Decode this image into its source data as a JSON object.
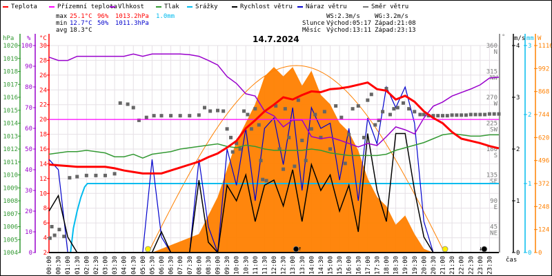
{
  "legend": [
    {
      "label": "Teplota",
      "color": "#ff0000"
    },
    {
      "label": "Přízemní teplota",
      "color": "#ff00ff"
    },
    {
      "label": "Vlhkost",
      "color": "#9900cc"
    },
    {
      "label": "Tlak",
      "color": "#339933"
    },
    {
      "label": "Srážky",
      "color": "#00bbee"
    },
    {
      "label": "Rychlost větru",
      "color": "#000000"
    },
    {
      "label": "Náraz větru",
      "color": "#0000cc"
    },
    {
      "label": "Směr větru",
      "color": "#777777"
    }
  ],
  "stats": {
    "max_label": "max",
    "max_temp": "25.1°C",
    "max_hum": "96%",
    "max_press": "1013.2hPa",
    "max_rain": "1.0mm",
    "min_label": "min",
    "min_temp": "12.7°C",
    "min_hum": "50%",
    "min_press": "1011.3hPa",
    "avg_label": "avg",
    "avg_temp": "18.3°C",
    "ws": "WS:2.3m/s",
    "wg": "WG:3.2m/s",
    "sun_label": "Slunce",
    "sun_rise": "Východ:05:17",
    "sun_set": "Západ:21:08",
    "moon_label": "Měsíc",
    "moon_rise": "Východ:13:11",
    "moon_set": "Západ:23:13"
  },
  "title": "14.7.2024",
  "axes": {
    "hpa": {
      "unit": "hPa",
      "ticks": [
        "1004",
        "1005",
        "1006",
        "1007",
        "1008",
        "1009",
        "1010",
        "1011",
        "1012",
        "1013",
        "1014",
        "1015",
        "1016",
        "1017",
        "1018",
        "1019",
        "1020"
      ],
      "color": "#339933"
    },
    "pct": {
      "unit": "%",
      "ticks": [
        "0",
        "10",
        "20",
        "30",
        "40",
        "50",
        "60",
        "70",
        "80",
        "90",
        "100"
      ],
      "color": "#9900cc"
    },
    "temp": {
      "unit": "°C",
      "ticks": [
        "2",
        "4",
        "6",
        "8",
        "10",
        "12",
        "14",
        "16",
        "18",
        "20",
        "22",
        "24",
        "26",
        "28",
        "30"
      ],
      "color": "#ff0000"
    },
    "dir": {
      "unit": "°",
      "ticks": [
        "45",
        "90",
        "135",
        "180",
        "225",
        "270",
        "315",
        "360"
      ],
      "compass": [
        "NE",
        "E",
        "SE",
        "S",
        "SW",
        "W",
        "NW",
        "N"
      ],
      "color": "#777777"
    },
    "ms": {
      "unit": "m/s",
      "ticks": [
        "0",
        "1",
        "2",
        "3",
        "4"
      ],
      "color": "#000000"
    },
    "mm": {
      "unit": "mm",
      "ticks": [
        "0",
        "1",
        "2",
        "3"
      ],
      "color": "#00bbee"
    },
    "w": {
      "unit": "W",
      "ticks": [
        "0",
        "124",
        "248",
        "372",
        "496",
        "620",
        "744",
        "868",
        "992",
        "1116"
      ],
      "color": "#ff8000"
    },
    "time_label": "čas"
  },
  "time_labels": [
    "00:00",
    "00:30",
    "01:00",
    "01:30",
    "02:00",
    "02:30",
    "03:00",
    "03:30",
    "04:00",
    "04:30",
    "05:00",
    "05:30",
    "06:00",
    "06:30",
    "07:00",
    "07:30",
    "08:00",
    "08:30",
    "09:00",
    "09:30",
    "10:00",
    "10:30",
    "11:00",
    "11:30",
    "12:00",
    "12:30",
    "13:00",
    "13:30",
    "14:00",
    "14:30",
    "15:00",
    "15:30",
    "16:00",
    "16:30",
    "17:00",
    "17:30",
    "18:00",
    "18:30",
    "19:00",
    "19:30",
    "20:00",
    "20:30",
    "21:00",
    "21:30",
    "22:00",
    "22:30",
    "23:00",
    "23:30"
  ],
  "chart_data": {
    "type": "line",
    "title": "14.7.2024",
    "xlabel": "čas",
    "x_unit": "hours, half-hourly samples 0..24",
    "xlim": [
      0,
      24
    ],
    "grid": true,
    "legend_position": "top",
    "series": [
      {
        "name": "Teplota",
        "unit": "°C",
        "ylim": [
          2,
          30
        ],
        "values": [
          13.9,
          13.8,
          13.7,
          13.6,
          13.6,
          13.6,
          13.6,
          13.4,
          13.1,
          12.9,
          12.7,
          12.7,
          12.7,
          13.1,
          13.5,
          13.9,
          14.3,
          14.9,
          15.4,
          16.2,
          17.1,
          18.8,
          19.9,
          21.1,
          22.0,
          23.0,
          22.7,
          23.3,
          23.8,
          23.7,
          24.1,
          24.2,
          24.4,
          24.7,
          25.0,
          24.1,
          23.9,
          22.7,
          23.2,
          22.4,
          21.1,
          20.2,
          19.5,
          18.3,
          17.4,
          17.1,
          16.8,
          16.4,
          16.1
        ]
      },
      {
        "name": "Přízemní teplota",
        "unit": "°C",
        "ylim": [
          2,
          30
        ],
        "values": [
          20,
          20,
          20,
          20,
          20,
          20,
          20,
          20,
          20,
          20,
          20,
          20,
          20,
          20,
          20,
          20,
          20,
          20,
          20,
          20,
          20,
          20,
          20,
          20,
          20,
          20,
          20,
          20,
          20,
          20,
          20,
          20,
          20,
          20,
          20,
          20,
          20,
          20,
          20,
          20,
          20,
          20,
          20,
          20,
          20,
          20,
          20,
          20,
          20
        ]
      },
      {
        "name": "Vlhkost",
        "unit": "%",
        "ylim": [
          0,
          100
        ],
        "values": [
          94.4,
          92.8,
          92.8,
          94.8,
          94.8,
          94.8,
          94.8,
          94.8,
          94.8,
          95.9,
          94.8,
          95.9,
          95.9,
          95.9,
          95.9,
          95.6,
          94.8,
          92.8,
          90.6,
          85.0,
          81.7,
          76.7,
          75.6,
          68.3,
          66.0,
          60.7,
          64.0,
          64.0,
          56.0,
          55.0,
          55.7,
          54.3,
          52.7,
          51.0,
          52.7,
          51.7,
          56.0,
          60.7,
          59.3,
          57.3,
          65.0,
          70.7,
          72.7,
          75.6,
          77.3,
          79.0,
          81.0,
          84.3,
          84.7
        ]
      },
      {
        "name": "Tlak",
        "unit": "hPa",
        "ylim": [
          1004,
          1020
        ],
        "values": [
          1011.6,
          1011.7,
          1011.8,
          1011.8,
          1011.9,
          1011.8,
          1011.7,
          1011.4,
          1011.4,
          1011.6,
          1011.3,
          1011.6,
          1011.7,
          1011.8,
          1012.0,
          1012.1,
          1012.2,
          1012.3,
          1012.4,
          1012.2,
          1012.1,
          1012.3,
          1012.2,
          1012.0,
          1011.9,
          1011.9,
          1011.9,
          1011.9,
          1012.0,
          1011.9,
          1011.7,
          1011.6,
          1011.5,
          1011.5,
          1011.5,
          1011.5,
          1011.6,
          1011.9,
          1012.1,
          1012.3,
          1012.5,
          1012.8,
          1013.1,
          1013.2,
          1013.1,
          1013.0,
          1013.0,
          1013.1,
          1013.1
        ]
      },
      {
        "name": "Srážky",
        "unit": "mm",
        "ylim": [
          0,
          3
        ],
        "points": [
          [
            0,
            0
          ],
          [
            1.15,
            0
          ],
          [
            1.3,
            0.35
          ],
          [
            1.5,
            0.6
          ],
          [
            1.7,
            0.8
          ],
          [
            1.9,
            0.95
          ],
          [
            2.05,
            1.0
          ],
          [
            24,
            1.0
          ]
        ]
      },
      {
        "name": "Rychlost větru",
        "unit": "m/s",
        "ylim": [
          0,
          4
        ],
        "values": [
          0.8,
          1.1,
          0.3,
          0,
          0,
          0,
          0,
          0,
          0,
          0,
          0,
          0,
          0.4,
          0,
          0,
          0,
          1.4,
          0.2,
          0,
          1.3,
          1.0,
          1.5,
          0.6,
          1.3,
          1.4,
          0.9,
          1.6,
          0.6,
          1.7,
          1.2,
          1.5,
          0.8,
          1.3,
          0.4,
          2.3,
          1.2,
          0.6,
          2.3,
          2.3,
          1.2,
          0.3,
          0,
          0,
          0,
          0,
          0,
          0,
          0,
          0
        ]
      },
      {
        "name": "Náraz větru",
        "unit": "m/s",
        "ylim": [
          0,
          4
        ],
        "values": [
          1.8,
          1.6,
          0,
          0,
          0,
          0,
          0,
          0,
          0,
          0,
          0,
          1.8,
          0.3,
          0,
          0,
          0,
          1.8,
          0.5,
          0,
          2.0,
          1.3,
          2.4,
          1.0,
          2.4,
          2.6,
          1.7,
          2.8,
          1.2,
          2.8,
          2.4,
          2.5,
          1.4,
          2.4,
          1.0,
          2.6,
          2.1,
          3.2,
          2.8,
          3.2,
          2.5,
          0.6,
          0,
          0,
          0,
          0,
          0,
          0,
          0,
          0
        ]
      },
      {
        "name": "Směr větru",
        "unit": "°",
        "ylim": [
          0,
          360
        ],
        "points": [
          [
            0.05,
            25
          ],
          [
            0.15,
            45
          ],
          [
            0.3,
            30
          ],
          [
            0.55,
            40
          ],
          [
            0.8,
            28
          ],
          [
            1.1,
            130
          ],
          [
            1.5,
            132
          ],
          [
            2,
            134
          ],
          [
            2.5,
            134
          ],
          [
            3,
            134
          ],
          [
            3.5,
            137
          ],
          [
            3.8,
            260
          ],
          [
            4.2,
            258
          ],
          [
            4.5,
            252
          ],
          [
            4.8,
            230
          ],
          [
            5.2,
            235
          ],
          [
            5.6,
            238
          ],
          [
            6,
            238
          ],
          [
            6.5,
            238
          ],
          [
            7,
            238
          ],
          [
            7.5,
            238
          ],
          [
            8,
            239
          ],
          [
            8.3,
            252
          ],
          [
            8.6,
            246
          ],
          [
            9,
            247
          ],
          [
            9.3,
            246
          ],
          [
            9.5,
            215
          ],
          [
            9.7,
            200
          ],
          [
            9.8,
            175
          ],
          [
            10,
            190
          ],
          [
            10.2,
            180
          ],
          [
            10.4,
            246
          ],
          [
            10.6,
            240
          ],
          [
            10.8,
            215
          ],
          [
            11,
            250
          ],
          [
            11.2,
            222
          ],
          [
            11.3,
            160
          ],
          [
            11.4,
            127
          ],
          [
            11.6,
            125
          ],
          [
            12.1,
            255
          ],
          [
            12.3,
            180
          ],
          [
            12.5,
            145
          ],
          [
            12.6,
            250
          ],
          [
            12.8,
            200
          ],
          [
            13.1,
            150
          ],
          [
            13.3,
            265
          ],
          [
            13.5,
            195
          ],
          [
            13.7,
            160
          ],
          [
            14,
            215
          ],
          [
            14.2,
            240
          ],
          [
            14.5,
            200
          ],
          [
            14.7,
            245
          ],
          [
            15,
            180
          ],
          [
            15.3,
            255
          ],
          [
            15.6,
            235
          ],
          [
            15.8,
            155
          ],
          [
            16,
            205
          ],
          [
            16.2,
            250
          ],
          [
            16.5,
            255
          ],
          [
            16.8,
            200
          ],
          [
            17,
            265
          ],
          [
            17.2,
            275
          ],
          [
            17.4,
            222
          ],
          [
            17.6,
            230
          ],
          [
            17.8,
            245
          ],
          [
            18,
            285
          ],
          [
            18.2,
            240
          ],
          [
            18.4,
            250
          ],
          [
            18.6,
            252
          ],
          [
            18.9,
            260
          ],
          [
            19.2,
            250
          ],
          [
            19.5,
            245
          ],
          [
            19.8,
            240
          ],
          [
            20,
            240
          ],
          [
            20.25,
            238
          ],
          [
            20.5,
            238
          ],
          [
            20.75,
            238
          ],
          [
            21,
            238
          ],
          [
            21.25,
            238
          ],
          [
            21.5,
            239
          ],
          [
            21.75,
            239
          ],
          [
            22,
            239
          ],
          [
            22.25,
            239
          ],
          [
            22.5,
            240
          ],
          [
            22.75,
            240
          ],
          [
            23,
            240
          ],
          [
            23.25,
            240
          ],
          [
            23.5,
            241
          ],
          [
            23.75,
            241
          ],
          [
            24,
            241
          ]
        ]
      },
      {
        "name": "Sluneční záření",
        "unit": "W",
        "ylim": [
          0,
          1116
        ],
        "values": [
          0,
          0,
          0,
          0,
          0,
          0,
          0,
          0,
          0,
          0,
          0,
          0,
          20,
          40,
          60,
          80,
          100,
          200,
          300,
          450,
          600,
          700,
          800,
          950,
          1000,
          950,
          1000,
          900,
          980,
          850,
          800,
          700,
          650,
          550,
          400,
          300,
          250,
          150,
          200,
          100,
          20,
          0,
          0,
          0,
          0,
          0,
          0,
          0,
          0
        ]
      },
      {
        "name": "Teoretické záření",
        "unit": "W",
        "ylim": [
          0,
          1116
        ],
        "rise": 5.3,
        "set": 21.1,
        "peak": 1008
      }
    ],
    "markers": [
      {
        "name": "sunrise",
        "time": 5.28,
        "color": "#ffee00"
      },
      {
        "name": "sunset",
        "time": 21.13,
        "color": "#ffee00"
      },
      {
        "name": "moonrise",
        "time": 13.18,
        "color": "#000000",
        "arrow": "↑"
      },
      {
        "name": "moonset",
        "time": 23.22,
        "color": "#000000",
        "arrow": "↓"
      }
    ]
  }
}
